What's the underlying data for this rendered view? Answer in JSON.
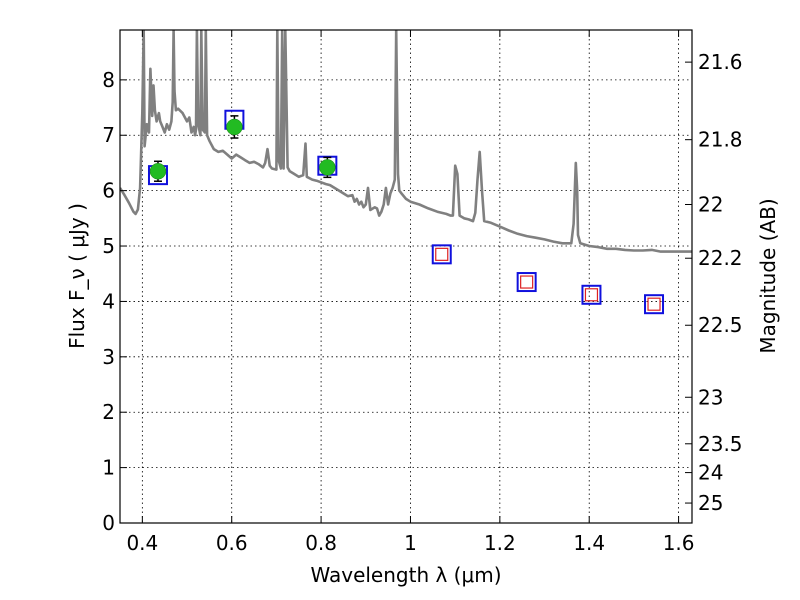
{
  "chart_data": {
    "type": "scatter",
    "title": "",
    "xlabel": "Wavelength λ (μm)",
    "ylabel": "Flux F_ν ( μJy )",
    "ylabel_right": "Magnitude (AB)",
    "xlim": [
      0.35,
      1.63
    ],
    "ylim": [
      0,
      8.9
    ],
    "grid": true,
    "x_ticks": [
      0.4,
      0.6,
      0.8,
      1.0,
      1.2,
      1.4,
      1.6
    ],
    "x_tick_labels": [
      "0.4",
      "0.6",
      "0.8",
      "1",
      "1.2",
      "1.4",
      "1.6"
    ],
    "y_ticks": [
      0,
      1,
      2,
      3,
      4,
      5,
      6,
      7,
      8
    ],
    "y_tick_labels": [
      "0",
      "1",
      "2",
      "3",
      "4",
      "5",
      "6",
      "7",
      "8"
    ],
    "right_ticks": [
      {
        "label": "21.6",
        "flux": 8.32
      },
      {
        "label": "21.8",
        "flux": 6.92
      },
      {
        "label": "22",
        "flux": 5.75
      },
      {
        "label": "22.2",
        "flux": 4.78
      },
      {
        "label": "22.5",
        "flux": 3.57
      },
      {
        "label": "23",
        "flux": 2.27
      },
      {
        "label": "23.5",
        "flux": 1.43
      },
      {
        "label": "24",
        "flux": 0.91
      },
      {
        "label": "25",
        "flux": 0.36
      }
    ],
    "colors": {
      "spectrum": "#808080",
      "observed_marker": "#22bb22",
      "model_box": "#1010dd",
      "upper_box": "#dd2222"
    },
    "series": [
      {
        "kind": "line",
        "points": [
          [
            0.35,
            6.05
          ],
          [
            0.36,
            5.92
          ],
          [
            0.37,
            5.78
          ],
          [
            0.38,
            5.62
          ],
          [
            0.385,
            5.58
          ],
          [
            0.39,
            5.66
          ],
          [
            0.395,
            6.05
          ],
          [
            0.4,
            7.4
          ],
          [
            0.403,
            8.9
          ],
          [
            0.405,
            6.8
          ],
          [
            0.41,
            7.2
          ],
          [
            0.415,
            7.05
          ],
          [
            0.418,
            8.2
          ],
          [
            0.422,
            7.35
          ],
          [
            0.425,
            7.9
          ],
          [
            0.428,
            7.45
          ],
          [
            0.432,
            7.25
          ],
          [
            0.437,
            7.4
          ],
          [
            0.44,
            7.25
          ],
          [
            0.445,
            7.15
          ],
          [
            0.45,
            7.05
          ],
          [
            0.455,
            7.2
          ],
          [
            0.46,
            7.1
          ],
          [
            0.465,
            7.25
          ],
          [
            0.468,
            7.6
          ],
          [
            0.47,
            8.9
          ],
          [
            0.472,
            7.8
          ],
          [
            0.475,
            7.45
          ],
          [
            0.48,
            7.48
          ],
          [
            0.49,
            7.4
          ],
          [
            0.5,
            7.25
          ],
          [
            0.505,
            7.32
          ],
          [
            0.51,
            7.05
          ],
          [
            0.515,
            7.15
          ],
          [
            0.518,
            7.0
          ],
          [
            0.52,
            7.1
          ],
          [
            0.522,
            8.9
          ],
          [
            0.525,
            7.2
          ],
          [
            0.53,
            7.0
          ],
          [
            0.532,
            8.9
          ],
          [
            0.535,
            7.1
          ],
          [
            0.54,
            7.05
          ],
          [
            0.542,
            8.9
          ],
          [
            0.545,
            7.0
          ],
          [
            0.55,
            6.9
          ],
          [
            0.56,
            6.75
          ],
          [
            0.57,
            6.7
          ],
          [
            0.58,
            6.72
          ],
          [
            0.59,
            6.65
          ],
          [
            0.6,
            6.58
          ],
          [
            0.61,
            6.65
          ],
          [
            0.62,
            6.6
          ],
          [
            0.63,
            6.55
          ],
          [
            0.64,
            6.5
          ],
          [
            0.65,
            6.52
          ],
          [
            0.66,
            6.48
          ],
          [
            0.67,
            6.42
          ],
          [
            0.675,
            6.5
          ],
          [
            0.68,
            6.75
          ],
          [
            0.685,
            6.45
          ],
          [
            0.69,
            6.4
          ],
          [
            0.7,
            6.38
          ],
          [
            0.702,
            8.9
          ],
          [
            0.705,
            6.55
          ],
          [
            0.71,
            6.4
          ],
          [
            0.713,
            8.9
          ],
          [
            0.716,
            6.4
          ],
          [
            0.72,
            8.9
          ],
          [
            0.725,
            6.42
          ],
          [
            0.73,
            6.35
          ],
          [
            0.74,
            6.3
          ],
          [
            0.75,
            6.25
          ],
          [
            0.76,
            6.28
          ],
          [
            0.765,
            6.85
          ],
          [
            0.768,
            6.25
          ],
          [
            0.78,
            6.2
          ],
          [
            0.79,
            6.18
          ],
          [
            0.8,
            6.15
          ],
          [
            0.81,
            6.12
          ],
          [
            0.82,
            6.1
          ],
          [
            0.83,
            6.05
          ],
          [
            0.84,
            6.0
          ],
          [
            0.85,
            5.95
          ],
          [
            0.86,
            5.9
          ],
          [
            0.87,
            5.92
          ],
          [
            0.875,
            5.8
          ],
          [
            0.88,
            5.85
          ],
          [
            0.885,
            5.75
          ],
          [
            0.89,
            5.8
          ],
          [
            0.895,
            5.7
          ],
          [
            0.9,
            5.75
          ],
          [
            0.905,
            6.05
          ],
          [
            0.91,
            5.65
          ],
          [
            0.92,
            5.7
          ],
          [
            0.925,
            5.68
          ],
          [
            0.93,
            5.55
          ],
          [
            0.935,
            5.62
          ],
          [
            0.94,
            5.75
          ],
          [
            0.945,
            6.05
          ],
          [
            0.95,
            5.75
          ],
          [
            0.955,
            5.95
          ],
          [
            0.96,
            6.05
          ],
          [
            0.965,
            6.2
          ],
          [
            0.968,
            8.9
          ],
          [
            0.972,
            6.3
          ],
          [
            0.975,
            6.0
          ],
          [
            0.98,
            5.95
          ],
          [
            0.99,
            5.85
          ],
          [
            1.0,
            5.8
          ],
          [
            1.02,
            5.75
          ],
          [
            1.04,
            5.68
          ],
          [
            1.06,
            5.62
          ],
          [
            1.08,
            5.58
          ],
          [
            1.09,
            5.55
          ],
          [
            1.095,
            5.55
          ],
          [
            1.1,
            6.45
          ],
          [
            1.105,
            6.3
          ],
          [
            1.11,
            5.55
          ],
          [
            1.12,
            5.5
          ],
          [
            1.13,
            5.48
          ],
          [
            1.14,
            5.45
          ],
          [
            1.145,
            5.6
          ],
          [
            1.15,
            6.2
          ],
          [
            1.155,
            6.7
          ],
          [
            1.16,
            6.0
          ],
          [
            1.165,
            5.45
          ],
          [
            1.18,
            5.42
          ],
          [
            1.2,
            5.35
          ],
          [
            1.22,
            5.28
          ],
          [
            1.24,
            5.22
          ],
          [
            1.26,
            5.18
          ],
          [
            1.28,
            5.15
          ],
          [
            1.3,
            5.12
          ],
          [
            1.32,
            5.08
          ],
          [
            1.34,
            5.05
          ],
          [
            1.36,
            5.05
          ],
          [
            1.365,
            5.4
          ],
          [
            1.37,
            6.5
          ],
          [
            1.373,
            6.0
          ],
          [
            1.375,
            5.2
          ],
          [
            1.38,
            5.05
          ],
          [
            1.4,
            5.0
          ],
          [
            1.42,
            4.98
          ],
          [
            1.44,
            4.95
          ],
          [
            1.46,
            4.95
          ],
          [
            1.48,
            4.93
          ],
          [
            1.5,
            4.92
          ],
          [
            1.52,
            4.92
          ],
          [
            1.54,
            4.93
          ],
          [
            1.56,
            4.9
          ],
          [
            1.58,
            4.9
          ],
          [
            1.6,
            4.9
          ],
          [
            1.63,
            4.9
          ]
        ]
      },
      {
        "kind": "observed",
        "points": [
          {
            "x": 0.435,
            "y": 6.35,
            "yerr": 0.18
          },
          {
            "x": 0.606,
            "y": 7.15,
            "yerr": 0.2
          },
          {
            "x": 0.814,
            "y": 6.42,
            "yerr": 0.18
          }
        ]
      },
      {
        "kind": "model",
        "points": [
          {
            "x": 0.435,
            "y": 6.28
          },
          {
            "x": 0.606,
            "y": 7.28
          },
          {
            "x": 0.814,
            "y": 6.45
          },
          {
            "x": 1.07,
            "y": 4.85
          },
          {
            "x": 1.26,
            "y": 4.35
          },
          {
            "x": 1.405,
            "y": 4.12
          },
          {
            "x": 1.545,
            "y": 3.95
          }
        ]
      },
      {
        "kind": "upper",
        "points": [
          {
            "x": 1.07,
            "y": 4.85
          },
          {
            "x": 1.26,
            "y": 4.35
          },
          {
            "x": 1.405,
            "y": 4.12
          },
          {
            "x": 1.545,
            "y": 3.95
          }
        ]
      }
    ]
  }
}
